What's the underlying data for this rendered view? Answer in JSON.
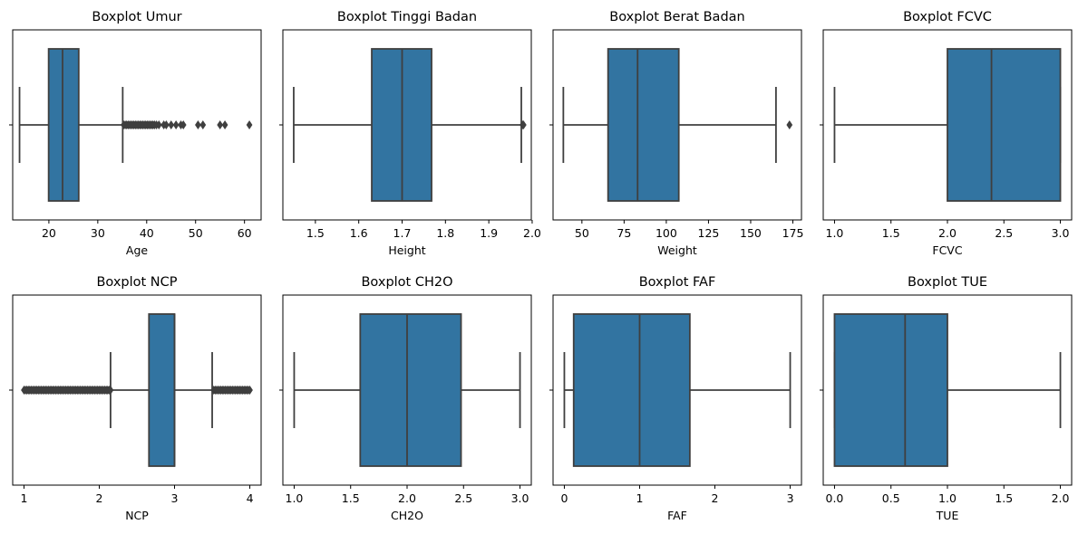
{
  "figure": {
    "background": "#ffffff",
    "box_color": "#3274a1",
    "line_color": "#3f3f3f"
  },
  "chart_data": [
    {
      "type": "box",
      "title": "Boxplot Umur",
      "xlabel": "Age",
      "xlim": [
        12.6,
        63.4
      ],
      "ticks": [
        20,
        30,
        40,
        50,
        60
      ],
      "tick_labels": [
        "20",
        "30",
        "40",
        "50",
        "60"
      ],
      "whisker_low": 14,
      "q1": 19.95,
      "median": 22.8,
      "q3": 26.1,
      "whisker_high": 35.1,
      "outliers": [
        35.3,
        35.6,
        35.9,
        36.2,
        36.5,
        36.8,
        37.1,
        37.4,
        37.7,
        38.0,
        38.3,
        38.6,
        38.9,
        39.2,
        39.5,
        39.8,
        40.1,
        40.4,
        40.7,
        41.0,
        41.3,
        41.6,
        42.0,
        42.5,
        43.5,
        44.0,
        45.0,
        46.0,
        47.0,
        47.5,
        50.5,
        51.5,
        55.0,
        56.0,
        61.0
      ]
    },
    {
      "type": "box",
      "title": "Boxplot Tinggi Badan",
      "xlabel": "Height",
      "xlim": [
        1.425,
        1.998
      ],
      "ticks": [
        1.5,
        1.6,
        1.7,
        1.8,
        1.9,
        2.0
      ],
      "tick_labels": [
        "1.5",
        "1.6",
        "1.7",
        "1.8",
        "1.9",
        "2.0"
      ],
      "whisker_low": 1.45,
      "q1": 1.63,
      "median": 1.7,
      "q3": 1.768,
      "whisker_high": 1.975,
      "outliers": [
        1.978,
        1.98
      ]
    },
    {
      "type": "box",
      "title": "Boxplot Berat Badan",
      "xlabel": "Weight",
      "xlim": [
        32.9,
        180.1
      ],
      "ticks": [
        50,
        75,
        100,
        125,
        150,
        175
      ],
      "tick_labels": [
        "50",
        "75",
        "100",
        "125",
        "150",
        "175"
      ],
      "whisker_low": 39,
      "q1": 65.5,
      "median": 83.0,
      "q3": 107.4,
      "whisker_high": 165.0,
      "outliers": [
        173.0
      ]
    },
    {
      "type": "box",
      "title": "Boxplot FCVC",
      "xlabel": "FCVC",
      "xlim": [
        0.9,
        3.1
      ],
      "ticks": [
        1.0,
        1.5,
        2.0,
        2.5,
        3.0
      ],
      "tick_labels": [
        "1.0",
        "1.5",
        "2.0",
        "2.5",
        "3.0"
      ],
      "whisker_low": 1.0,
      "q1": 2.0,
      "median": 2.39,
      "q3": 3.0,
      "whisker_high": 3.0,
      "outliers": []
    },
    {
      "type": "box",
      "title": "Boxplot NCP",
      "xlabel": "NCP",
      "xlim": [
        0.85,
        4.15
      ],
      "ticks": [
        1,
        2,
        3,
        4
      ],
      "tick_labels": [
        "1",
        "2",
        "3",
        "4"
      ],
      "whisker_low": 2.15,
      "q1": 2.66,
      "median": 3.0,
      "q3": 3.0,
      "whisker_high": 3.5,
      "outliers_low_range": [
        1.0,
        2.15
      ],
      "outliers_high_range": [
        3.52,
        4.0
      ]
    },
    {
      "type": "box",
      "title": "Boxplot CH2O",
      "xlabel": "CH2O",
      "xlim": [
        0.9,
        3.1
      ],
      "ticks": [
        1.0,
        1.5,
        2.0,
        2.5,
        3.0
      ],
      "tick_labels": [
        "1.0",
        "1.5",
        "2.0",
        "2.5",
        "3.0"
      ],
      "whisker_low": 1.0,
      "q1": 1.585,
      "median": 2.0,
      "q3": 2.478,
      "whisker_high": 3.0,
      "outliers": []
    },
    {
      "type": "box",
      "title": "Boxplot FAF",
      "xlabel": "FAF",
      "xlim": [
        -0.15,
        3.15
      ],
      "ticks": [
        0,
        1,
        2,
        3
      ],
      "tick_labels": [
        "0",
        "1",
        "2",
        "3"
      ],
      "whisker_low": 0.0,
      "q1": 0.124,
      "median": 1.0,
      "q3": 1.667,
      "whisker_high": 3.0,
      "outliers": []
    },
    {
      "type": "box",
      "title": "Boxplot TUE",
      "xlabel": "TUE",
      "xlim": [
        -0.1,
        2.1
      ],
      "ticks": [
        0.0,
        0.5,
        1.0,
        1.5,
        2.0
      ],
      "tick_labels": [
        "0.0",
        "0.5",
        "1.0",
        "1.5",
        "2.0"
      ],
      "whisker_low": 0.0,
      "q1": 0.0,
      "median": 0.625,
      "q3": 1.0,
      "whisker_high": 2.0,
      "outliers": []
    }
  ]
}
